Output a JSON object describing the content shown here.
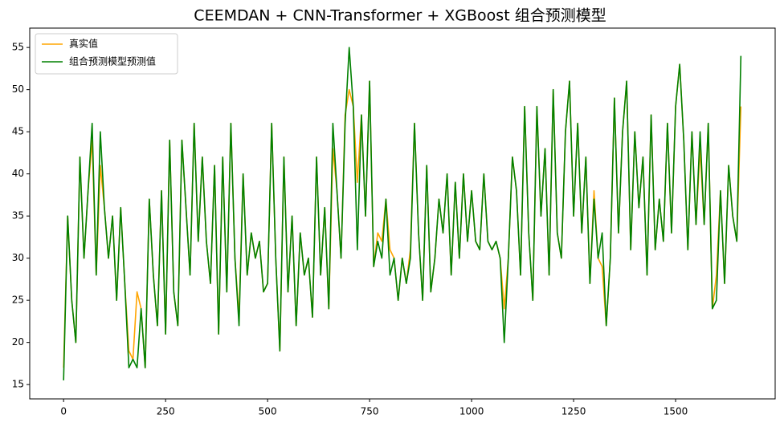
{
  "chart_data": {
    "type": "line",
    "title": "CEEMDAN + CNN-Transformer + XGBoost 组合预测模型",
    "x": [
      0,
      10,
      20,
      30,
      40,
      50,
      60,
      70,
      80,
      90,
      100,
      110,
      120,
      130,
      140,
      150,
      160,
      170,
      180,
      190,
      200,
      210,
      220,
      230,
      240,
      250,
      260,
      270,
      280,
      290,
      300,
      310,
      320,
      330,
      340,
      350,
      360,
      370,
      380,
      390,
      400,
      410,
      420,
      430,
      440,
      450,
      460,
      470,
      480,
      490,
      500,
      510,
      520,
      530,
      540,
      550,
      560,
      570,
      580,
      590,
      600,
      610,
      620,
      630,
      640,
      650,
      660,
      670,
      680,
      690,
      700,
      710,
      720,
      730,
      740,
      750,
      760,
      770,
      780,
      790,
      800,
      810,
      820,
      830,
      840,
      850,
      860,
      870,
      880,
      890,
      900,
      910,
      920,
      930,
      940,
      950,
      960,
      970,
      980,
      990,
      1000,
      1010,
      1020,
      1030,
      1040,
      1050,
      1060,
      1070,
      1080,
      1090,
      1100,
      1110,
      1120,
      1130,
      1140,
      1150,
      1160,
      1170,
      1180,
      1190,
      1200,
      1210,
      1220,
      1230,
      1240,
      1250,
      1260,
      1270,
      1280,
      1290,
      1300,
      1310,
      1320,
      1330,
      1340,
      1350,
      1360,
      1370,
      1380,
      1390,
      1400,
      1410,
      1420,
      1430,
      1440,
      1450,
      1460,
      1470,
      1480,
      1490,
      1500,
      1510,
      1520,
      1530,
      1540,
      1550,
      1560,
      1570,
      1580,
      1590,
      1600,
      1610,
      1620,
      1630,
      1640,
      1650,
      1660
    ],
    "series": [
      {
        "name": "真实值",
        "color": "#ffa500",
        "values": [
          17,
          35,
          25,
          20,
          42,
          30,
          38,
          44,
          28,
          41,
          36,
          30,
          35,
          25,
          36,
          27,
          19,
          18,
          26,
          24,
          17,
          37,
          28,
          22,
          38,
          21,
          44,
          26,
          22,
          44,
          36,
          28,
          46,
          32,
          42,
          32,
          27,
          41,
          21,
          42,
          26,
          46,
          30,
          23,
          40,
          28,
          33,
          30,
          32,
          26,
          27,
          46,
          30,
          19,
          42,
          26,
          35,
          22,
          33,
          28,
          30,
          23,
          42,
          28,
          36,
          24,
          43,
          38,
          30,
          47,
          50,
          48,
          39,
          47,
          35,
          51,
          29,
          33,
          32,
          37,
          31,
          30,
          25,
          30,
          27,
          31,
          46,
          33,
          25,
          41,
          26,
          30,
          37,
          33,
          40,
          28,
          39,
          30,
          40,
          32,
          38,
          32,
          31,
          40,
          32,
          31,
          32,
          30,
          24,
          30,
          42,
          38,
          28,
          48,
          33,
          25,
          48,
          35,
          43,
          28,
          50,
          33,
          30,
          45,
          51,
          35,
          46,
          33,
          42,
          27,
          38,
          30,
          29,
          22,
          30,
          49,
          33,
          45,
          51,
          31,
          45,
          36,
          42,
          28,
          47,
          31,
          37,
          32,
          46,
          33,
          48,
          53,
          44,
          31,
          45,
          34,
          43,
          34,
          46,
          24,
          28,
          38,
          27,
          41,
          35,
          32,
          48
        ]
      },
      {
        "name": "组合预测模型预测值",
        "color": "#008000",
        "values": [
          15.5,
          35,
          25,
          20,
          42,
          30,
          38,
          46,
          28,
          45,
          36,
          30,
          35,
          25,
          36,
          27,
          17,
          18,
          17,
          24,
          17,
          37,
          28,
          22,
          38,
          21,
          44,
          26,
          22,
          44,
          36,
          28,
          46,
          32,
          42,
          32,
          27,
          41,
          21,
          42,
          26,
          46,
          30,
          22,
          40,
          28,
          33,
          30,
          32,
          26,
          27,
          46,
          30,
          19,
          42,
          26,
          35,
          22,
          33,
          28,
          30,
          23,
          42,
          28,
          36,
          24,
          46,
          38,
          30,
          46,
          55,
          48,
          31,
          47,
          35,
          51,
          29,
          32,
          30,
          37,
          28,
          30,
          25,
          30,
          27,
          30,
          46,
          33,
          25,
          41,
          26,
          30,
          37,
          33,
          40,
          28,
          39,
          30,
          40,
          32,
          38,
          32,
          31,
          40,
          32,
          31,
          32,
          30,
          20,
          30,
          42,
          38,
          28,
          48,
          33,
          25,
          48,
          35,
          43,
          28,
          50,
          33,
          30,
          45,
          51,
          35,
          46,
          33,
          42,
          27,
          37,
          30,
          33,
          22,
          30,
          49,
          33,
          45,
          51,
          31,
          45,
          36,
          42,
          28,
          47,
          31,
          37,
          32,
          46,
          33,
          48,
          53,
          44,
          31,
          45,
          34,
          45,
          34,
          46,
          24,
          25,
          38,
          27,
          41,
          35,
          32,
          54
        ]
      }
    ],
    "xlim": [
      -83,
      1744
    ],
    "ylim": [
      13.3,
      57.3
    ],
    "xticks": [
      0,
      250,
      500,
      750,
      1000,
      1250,
      1500
    ],
    "yticks": [
      15,
      20,
      25,
      30,
      35,
      40,
      45,
      50,
      55
    ],
    "legend": "upper left"
  }
}
